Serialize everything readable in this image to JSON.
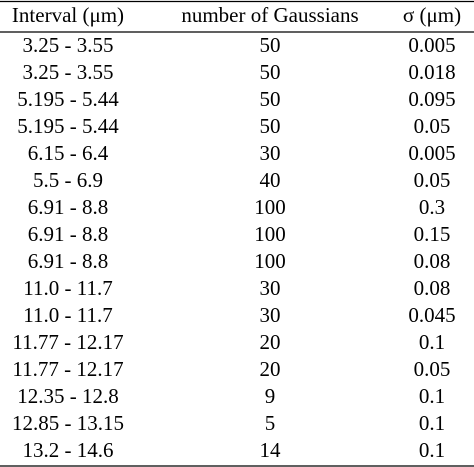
{
  "table": {
    "header": [
      "Interval (μm)",
      "number of Gaussians",
      "σ (μm)"
    ],
    "rows": [
      [
        "3.25 - 3.55",
        "50",
        "0.005"
      ],
      [
        "3.25 - 3.55",
        "50",
        "0.018"
      ],
      [
        "5.195 - 5.44",
        "50",
        "0.095"
      ],
      [
        "5.195 - 5.44",
        "50",
        "0.05"
      ],
      [
        "6.15 - 6.4",
        "30",
        "0.005"
      ],
      [
        "5.5 - 6.9",
        "40",
        "0.05"
      ],
      [
        "6.91 - 8.8",
        "100",
        "0.3"
      ],
      [
        "6.91 - 8.8",
        "100",
        "0.15"
      ],
      [
        "6.91 - 8.8",
        "100",
        "0.08"
      ],
      [
        "11.0 - 11.7",
        "30",
        "0.08"
      ],
      [
        "11.0 - 11.7",
        "30",
        "0.045"
      ],
      [
        "11.77 - 12.17",
        "20",
        "0.1"
      ],
      [
        "11.77 - 12.17",
        "20",
        "0.05"
      ],
      [
        "12.35 - 12.8",
        "9",
        "0.1"
      ],
      [
        "12.85 - 13.15",
        "5",
        "0.1"
      ],
      [
        "13.2 - 14.6",
        "14",
        "0.1"
      ]
    ]
  }
}
